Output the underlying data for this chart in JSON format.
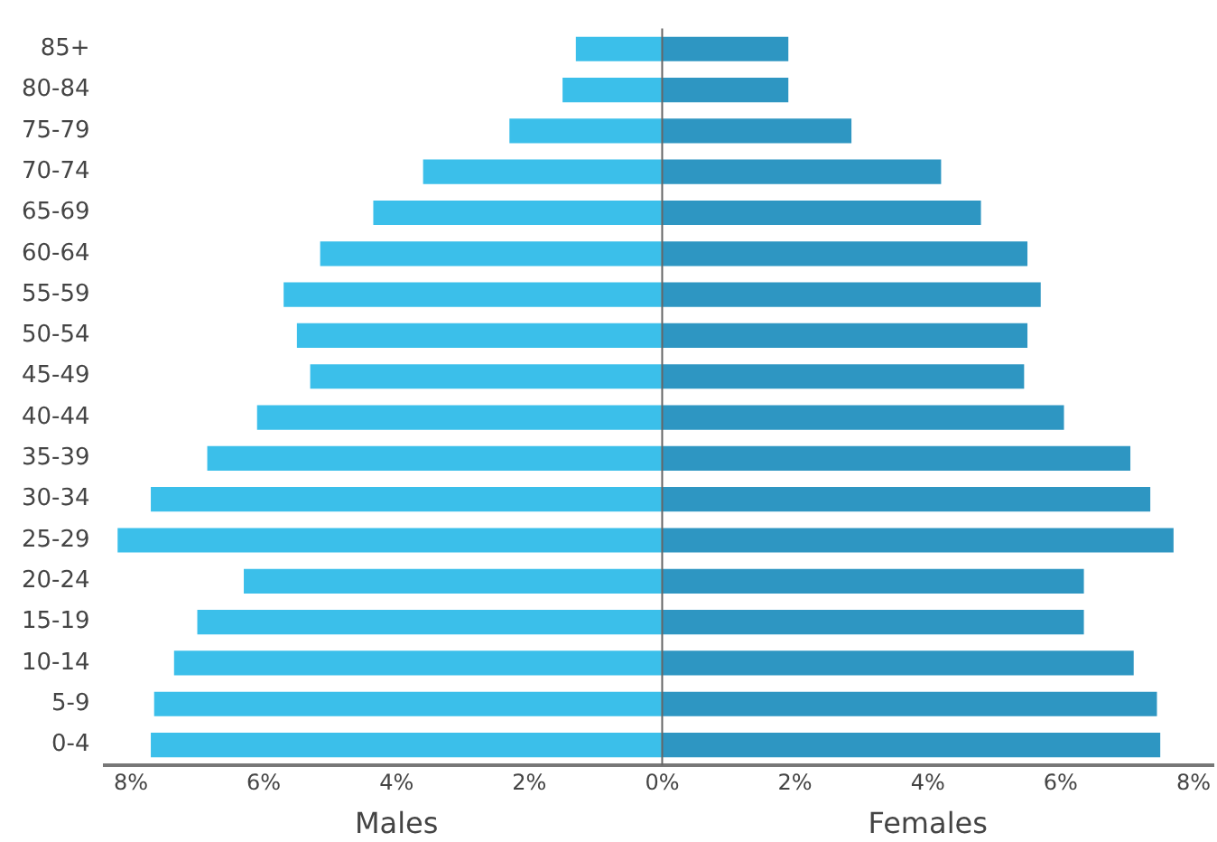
{
  "chart_data": {
    "type": "bar",
    "orientation": "horizontal",
    "stacked": true,
    "categories": [
      "85+",
      "80-84",
      "75-79",
      "70-74",
      "65-69",
      "60-64",
      "55-59",
      "50-54",
      "45-49",
      "40-44",
      "35-39",
      "30-34",
      "25-29",
      "20-24",
      "15-19",
      "10-14",
      "5-9",
      "0-4"
    ],
    "series": [
      {
        "name": "Males",
        "color": "#3bbfea",
        "values": [
          -1.3,
          -1.5,
          -2.3,
          -3.6,
          -4.35,
          -5.15,
          -5.7,
          -5.5,
          -5.3,
          -6.1,
          -6.85,
          -7.7,
          -8.2,
          -6.3,
          -7.0,
          -7.35,
          -7.65,
          -7.7
        ]
      },
      {
        "name": "Females",
        "color": "#2e96c2",
        "values": [
          1.9,
          1.9,
          2.85,
          4.2,
          4.8,
          5.5,
          5.7,
          5.5,
          5.45,
          6.05,
          7.05,
          7.35,
          7.7,
          6.35,
          6.35,
          7.1,
          7.45,
          7.5
        ]
      }
    ],
    "xlim": [
      -8.4,
      8.3
    ],
    "xticks": [
      {
        "value": -8,
        "label": "8%"
      },
      {
        "value": -6,
        "label": "6%"
      },
      {
        "value": -4,
        "label": "4%"
      },
      {
        "value": -2,
        "label": "2%"
      },
      {
        "value": 0,
        "label": "0%"
      },
      {
        "value": 2,
        "label": "2%"
      },
      {
        "value": 4,
        "label": "4%"
      },
      {
        "value": 6,
        "label": "6%"
      },
      {
        "value": 8,
        "label": "8%"
      }
    ],
    "ref_lines": [
      {
        "axis": "x",
        "value": 0,
        "color": "#666666"
      }
    ],
    "grid": false,
    "legend": false
  }
}
